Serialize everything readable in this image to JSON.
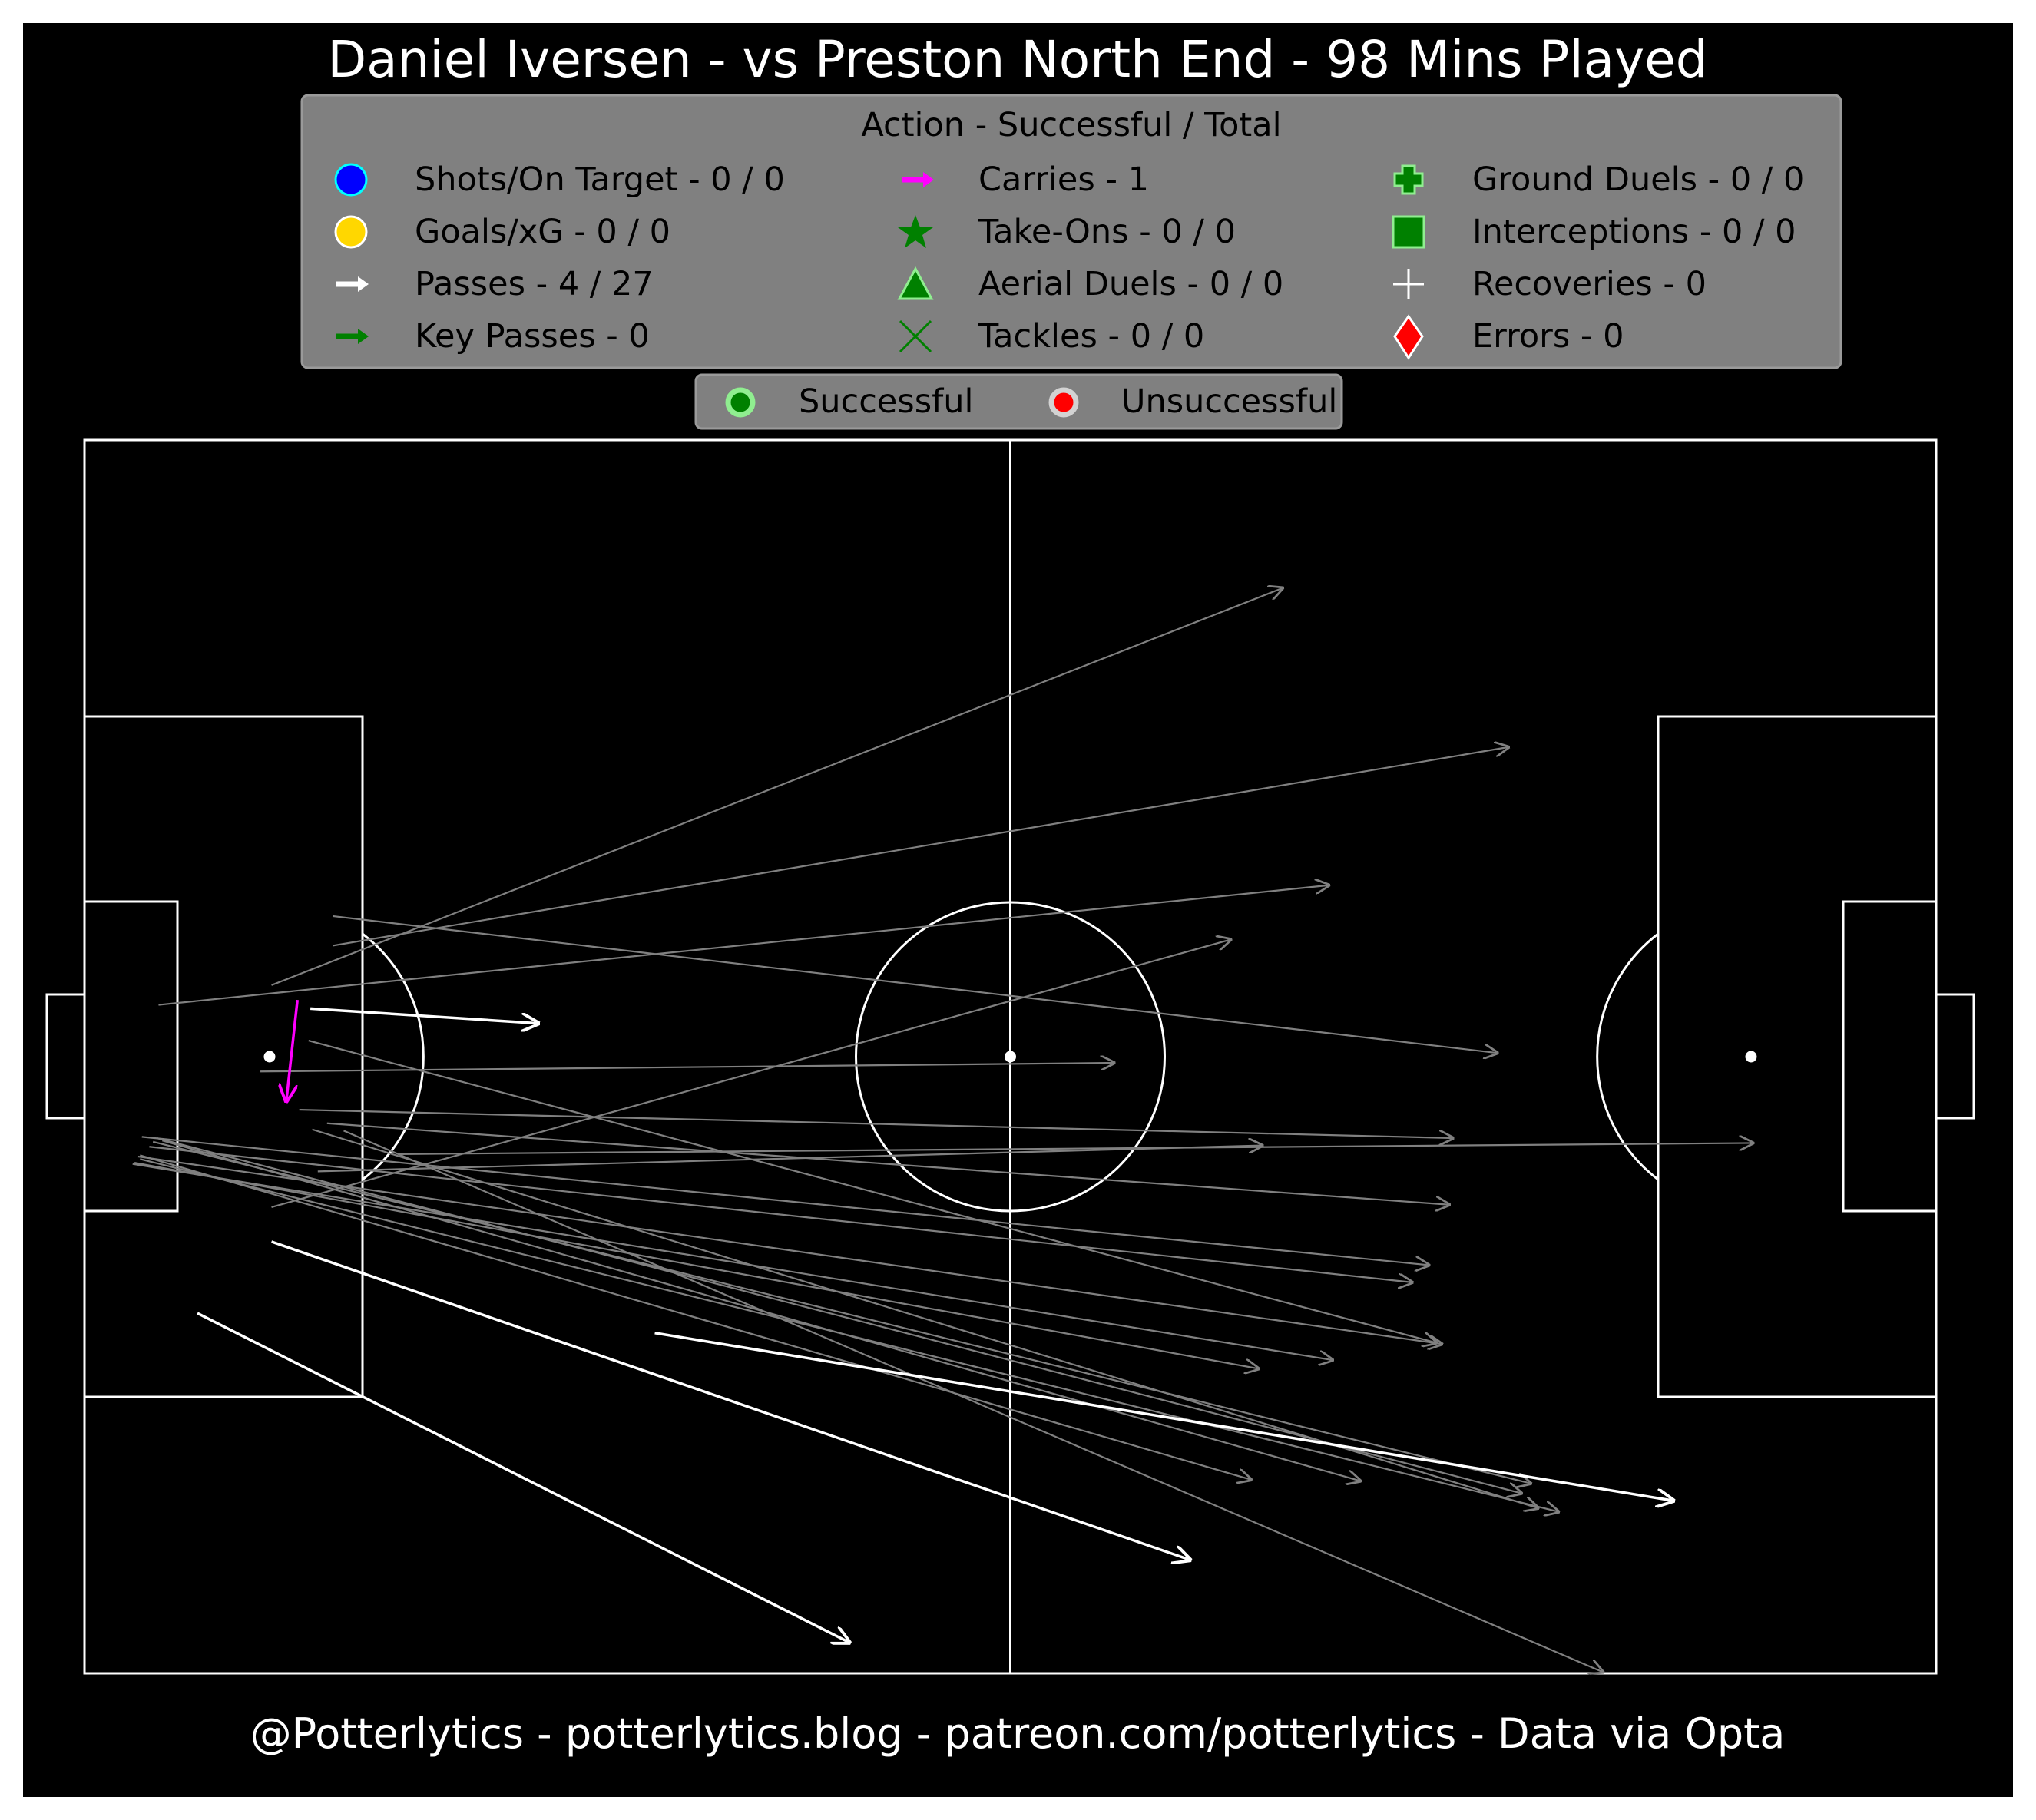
{
  "title": "Daniel Iversen - vs Preston North End - 98 Mins Played",
  "footer": "@Potterlytics - potterlytics.blog - patreon.com/potterlytics - Data via Opta",
  "legend": {
    "heading": "Action - Successful / Total",
    "items": [
      {
        "label": "Shots/On Target - 0 / 0",
        "icon": "circle-blue-icon",
        "color": "#0000ff"
      },
      {
        "label": "Goals/xG - 0 / 0",
        "icon": "circle-gold-icon",
        "color": "#ffd700"
      },
      {
        "label": "Passes - 4 / 27",
        "icon": "white-arrow-icon",
        "color": "#ffffff"
      },
      {
        "label": "Key Passes - 0",
        "icon": "green-arrow-icon",
        "color": "#008000"
      },
      {
        "label": "Carries - 1",
        "icon": "magenta-arrow-icon",
        "color": "#ff00ff"
      },
      {
        "label": "Take-Ons - 0 / 0",
        "icon": "star-icon",
        "color": "#008000"
      },
      {
        "label": "Aerial Duels - 0 / 0",
        "icon": "triangle-icon",
        "color": "#008000"
      },
      {
        "label": "Tackles - 0 / 0",
        "icon": "x-cross-icon",
        "color": "#008000"
      },
      {
        "label": "Ground Duels - 0 / 0",
        "icon": "plus-icon",
        "color": "#008000"
      },
      {
        "label": "Interceptions - 0 / 0",
        "icon": "square-icon",
        "color": "#008000"
      },
      {
        "label": "Recoveries - 0",
        "icon": "thin-plus-icon",
        "color": "#ffffff"
      },
      {
        "label": "Errors - 0",
        "icon": "diamond-icon",
        "color": "#ff0000"
      }
    ]
  },
  "outcome_legend": {
    "successful": "Successful",
    "unsuccessful": "Unsuccessful",
    "successful_color": "#008000",
    "unsuccessful_color": "#ff0000"
  },
  "chart_data": {
    "type": "scatter",
    "description_units": "pitch coordinates 0-100 (x: own goal to opponent goal, y: top touchline to bottom touchline)",
    "xlim": [
      0,
      100
    ],
    "ylim": [
      0,
      100
    ],
    "colors": {
      "pass_successful": "#ffffff",
      "pass_unsuccessful": "#808080",
      "carry": "#ff00ff"
    },
    "passes_successful": [
      {
        "x": 12.2,
        "y": 46.1,
        "end_x": 24.5,
        "end_y": 47.3
      },
      {
        "x": 10.1,
        "y": 65.0,
        "end_x": 59.7,
        "end_y": 90.8
      },
      {
        "x": 6.1,
        "y": 70.8,
        "end_x": 41.3,
        "end_y": 97.5
      },
      {
        "x": 30.8,
        "y": 72.4,
        "end_x": 85.8,
        "end_y": 86.0
      }
    ],
    "passes_unsuccessful": [
      {
        "x": 10.1,
        "y": 44.2,
        "end_x": 64.7,
        "end_y": 12.0
      },
      {
        "x": 13.4,
        "y": 41.0,
        "end_x": 76.9,
        "end_y": 24.9
      },
      {
        "x": 4.0,
        "y": 45.8,
        "end_x": 67.2,
        "end_y": 36.1
      },
      {
        "x": 13.4,
        "y": 38.6,
        "end_x": 76.3,
        "end_y": 49.7
      },
      {
        "x": 9.5,
        "y": 51.2,
        "end_x": 55.6,
        "end_y": 50.5
      },
      {
        "x": 10.1,
        "y": 62.2,
        "end_x": 61.9,
        "end_y": 40.5
      },
      {
        "x": 11.6,
        "y": 54.3,
        "end_x": 73.9,
        "end_y": 56.6
      },
      {
        "x": 12.6,
        "y": 59.3,
        "end_x": 63.6,
        "end_y": 57.2
      },
      {
        "x": 17.0,
        "y": 57.9,
        "end_x": 90.1,
        "end_y": 57.0
      },
      {
        "x": 13.1,
        "y": 55.4,
        "end_x": 73.7,
        "end_y": 62.0
      },
      {
        "x": 3.1,
        "y": 56.5,
        "end_x": 72.6,
        "end_y": 66.9
      },
      {
        "x": 3.5,
        "y": 57.3,
        "end_x": 71.7,
        "end_y": 68.3
      },
      {
        "x": 2.9,
        "y": 58.1,
        "end_x": 73.3,
        "end_y": 73.3
      },
      {
        "x": 12.1,
        "y": 48.7,
        "end_x": 73.0,
        "end_y": 73.2
      },
      {
        "x": 2.7,
        "y": 58.6,
        "end_x": 63.4,
        "end_y": 75.3
      },
      {
        "x": 2.6,
        "y": 58.7,
        "end_x": 67.4,
        "end_y": 74.6
      },
      {
        "x": 3.7,
        "y": 56.9,
        "end_x": 78.1,
        "end_y": 84.6
      },
      {
        "x": 3.0,
        "y": 58.0,
        "end_x": 63.0,
        "end_y": 84.3
      },
      {
        "x": 4.2,
        "y": 56.8,
        "end_x": 68.9,
        "end_y": 84.4
      },
      {
        "x": 12.3,
        "y": 55.9,
        "end_x": 78.5,
        "end_y": 86.6
      },
      {
        "x": 3.0,
        "y": 58.3,
        "end_x": 79.6,
        "end_y": 86.9
      },
      {
        "x": 14.0,
        "y": 56.0,
        "end_x": 82.0,
        "end_y": 99.9
      },
      {
        "x": 3.9,
        "y": 56.6,
        "end_x": 77.6,
        "end_y": 85.4
      }
    ],
    "carries": [
      {
        "x": 11.5,
        "y": 45.4,
        "end_x": 10.9,
        "end_y": 53.6
      }
    ]
  }
}
